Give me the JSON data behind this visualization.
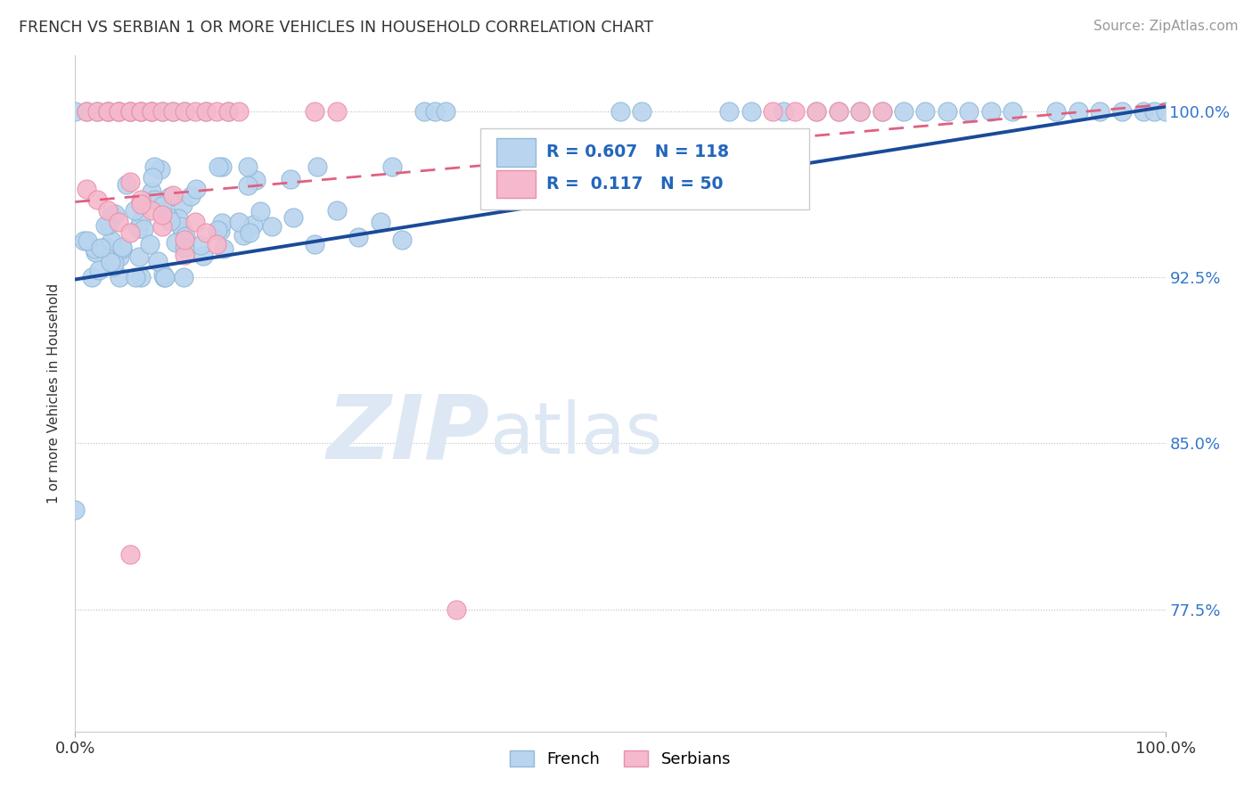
{
  "title": "FRENCH VS SERBIAN 1 OR MORE VEHICLES IN HOUSEHOLD CORRELATION CHART",
  "source": "Source: ZipAtlas.com",
  "ylabel": "1 or more Vehicles in Household",
  "xlim": [
    0.0,
    1.0
  ],
  "ylim": [
    0.72,
    1.025
  ],
  "yticks": [
    0.775,
    0.85,
    0.925,
    1.0
  ],
  "ytick_labels": [
    "77.5%",
    "85.0%",
    "92.5%",
    "100.0%"
  ],
  "xtick_labels": [
    "0.0%",
    "100.0%"
  ],
  "french_R": 0.607,
  "french_N": 118,
  "serbian_R": 0.117,
  "serbian_N": 50,
  "french_color": "#b8d4ee",
  "french_edge": "#90b8d8",
  "french_line_color": "#1a4a99",
  "serbian_color": "#f5b8cc",
  "serbian_edge": "#e890a8",
  "serbian_line_color": "#e06080",
  "watermark_color": "#dde8f4",
  "background_color": "#ffffff",
  "french_line_x0": 0.0,
  "french_line_y0": 0.924,
  "french_line_x1": 1.0,
  "french_line_y1": 1.002,
  "serbian_line_x0": 0.0,
  "serbian_line_y0": 0.959,
  "serbian_line_x1": 1.0,
  "serbian_line_y1": 1.003
}
